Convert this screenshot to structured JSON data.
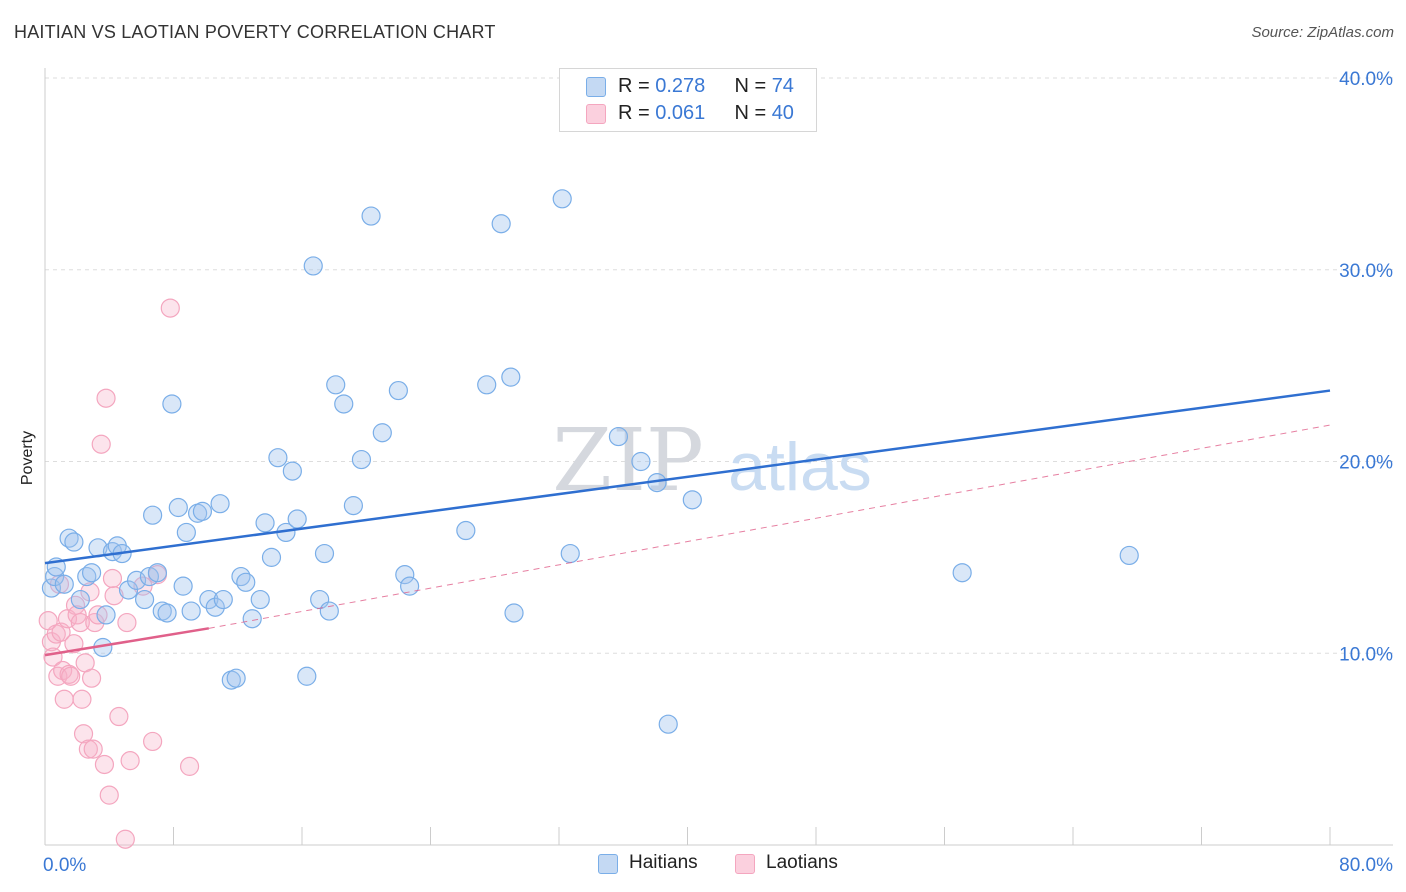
{
  "title": "HAITIAN VS LAOTIAN POVERTY CORRELATION CHART",
  "source": "Source: ZipAtlas.com",
  "watermark": {
    "zip": "ZIP",
    "atlas": "atlas"
  },
  "stats": [
    {
      "r_label": "R = ",
      "r_value": "0.278",
      "n_label": "N = ",
      "n_value": "74"
    },
    {
      "r_label": "R = ",
      "r_value": "0.061",
      "n_label": "N = ",
      "n_value": "40"
    }
  ],
  "chart_data": {
    "type": "scatter",
    "title": "HAITIAN VS LAOTIAN POVERTY CORRELATION CHART",
    "xlabel": "",
    "ylabel": "Poverty",
    "xlim": [
      0,
      80
    ],
    "ylim": [
      0,
      40
    ],
    "x_tick_labels": [
      {
        "value": 0,
        "label": "0.0%"
      },
      {
        "value": 80,
        "label": "80.0%"
      }
    ],
    "y_tick_labels": [
      {
        "value": 10,
        "label": "10.0%"
      },
      {
        "value": 20,
        "label": "20.0%"
      },
      {
        "value": 30,
        "label": "30.0%"
      },
      {
        "value": 40,
        "label": "40.0%"
      }
    ],
    "x_minor_ticks": [
      0,
      8,
      16,
      24,
      32,
      40,
      48,
      56,
      64,
      72,
      80
    ],
    "grid": true,
    "legend": "bottom-center",
    "series": [
      {
        "name": "Haitians",
        "color": "#7aaee8",
        "line_color": "#2f6fd0",
        "trend": {
          "x": [
            0,
            80
          ],
          "y": [
            14.7,
            23.7
          ],
          "extrapolated": false
        },
        "points": [
          [
            0.4,
            13.4
          ],
          [
            0.6,
            14.0
          ],
          [
            0.7,
            14.5
          ],
          [
            1.2,
            13.6
          ],
          [
            1.5,
            16.0
          ],
          [
            1.8,
            15.8
          ],
          [
            2.2,
            12.8
          ],
          [
            2.6,
            14.0
          ],
          [
            2.9,
            14.2
          ],
          [
            3.3,
            15.5
          ],
          [
            3.6,
            10.3
          ],
          [
            3.8,
            12.0
          ],
          [
            4.2,
            15.3
          ],
          [
            4.5,
            15.6
          ],
          [
            4.8,
            15.2
          ],
          [
            5.2,
            13.3
          ],
          [
            5.7,
            13.8
          ],
          [
            6.2,
            12.8
          ],
          [
            6.5,
            14.0
          ],
          [
            6.7,
            17.2
          ],
          [
            7.0,
            14.2
          ],
          [
            7.3,
            12.2
          ],
          [
            7.6,
            12.1
          ],
          [
            7.9,
            23.0
          ],
          [
            8.3,
            17.6
          ],
          [
            8.6,
            13.5
          ],
          [
            8.8,
            16.3
          ],
          [
            9.1,
            12.2
          ],
          [
            9.5,
            17.3
          ],
          [
            9.8,
            17.4
          ],
          [
            10.2,
            12.8
          ],
          [
            10.6,
            12.4
          ],
          [
            10.9,
            17.8
          ],
          [
            11.1,
            12.8
          ],
          [
            11.6,
            8.6
          ],
          [
            11.9,
            8.7
          ],
          [
            12.2,
            14.0
          ],
          [
            12.5,
            13.7
          ],
          [
            12.9,
            11.8
          ],
          [
            13.4,
            12.8
          ],
          [
            13.7,
            16.8
          ],
          [
            14.1,
            15.0
          ],
          [
            14.5,
            20.2
          ],
          [
            15.0,
            16.3
          ],
          [
            15.4,
            19.5
          ],
          [
            15.7,
            17.0
          ],
          [
            16.3,
            8.8
          ],
          [
            16.7,
            30.2
          ],
          [
            17.1,
            12.8
          ],
          [
            17.4,
            15.2
          ],
          [
            17.7,
            12.2
          ],
          [
            18.1,
            24.0
          ],
          [
            18.6,
            23.0
          ],
          [
            19.2,
            17.7
          ],
          [
            19.7,
            20.1
          ],
          [
            20.3,
            32.8
          ],
          [
            21.0,
            21.5
          ],
          [
            22.0,
            23.7
          ],
          [
            22.4,
            14.1
          ],
          [
            22.7,
            13.5
          ],
          [
            26.2,
            16.4
          ],
          [
            27.5,
            24.0
          ],
          [
            28.4,
            32.4
          ],
          [
            29.0,
            24.4
          ],
          [
            29.2,
            12.1
          ],
          [
            32.2,
            33.7
          ],
          [
            32.7,
            15.2
          ],
          [
            35.7,
            21.3
          ],
          [
            37.1,
            20.0
          ],
          [
            38.1,
            18.9
          ],
          [
            38.8,
            6.3
          ],
          [
            40.3,
            18.0
          ],
          [
            57.1,
            14.2
          ],
          [
            67.5,
            15.1
          ]
        ]
      },
      {
        "name": "Laotians",
        "color": "#f4a6bf",
        "line_color": "#e0608a",
        "trend": {
          "x": [
            0,
            10.2
          ],
          "y": [
            9.9,
            11.3
          ],
          "extrapolated_to": [
            80,
            21.9
          ]
        },
        "points": [
          [
            0.2,
            11.7
          ],
          [
            0.4,
            10.6
          ],
          [
            0.5,
            9.8
          ],
          [
            0.7,
            11.0
          ],
          [
            0.8,
            8.8
          ],
          [
            0.9,
            13.6
          ],
          [
            1.0,
            11.1
          ],
          [
            1.1,
            9.1
          ],
          [
            1.2,
            7.6
          ],
          [
            1.4,
            11.8
          ],
          [
            1.5,
            8.9
          ],
          [
            1.6,
            8.8
          ],
          [
            1.8,
            10.5
          ],
          [
            1.9,
            12.5
          ],
          [
            2.0,
            12.0
          ],
          [
            2.2,
            11.6
          ],
          [
            2.3,
            7.6
          ],
          [
            2.4,
            5.8
          ],
          [
            2.5,
            9.5
          ],
          [
            2.7,
            5.0
          ],
          [
            2.8,
            13.2
          ],
          [
            2.9,
            8.7
          ],
          [
            3.0,
            5.0
          ],
          [
            3.1,
            11.6
          ],
          [
            3.3,
            12.0
          ],
          [
            3.5,
            20.9
          ],
          [
            3.7,
            4.2
          ],
          [
            3.8,
            23.3
          ],
          [
            4.0,
            2.6
          ],
          [
            4.2,
            13.9
          ],
          [
            4.3,
            13.0
          ],
          [
            4.6,
            6.7
          ],
          [
            5.0,
            0.3
          ],
          [
            5.1,
            11.6
          ],
          [
            5.3,
            4.4
          ],
          [
            6.1,
            13.5
          ],
          [
            6.7,
            5.4
          ],
          [
            7.0,
            14.1
          ],
          [
            7.8,
            28.0
          ],
          [
            9.0,
            4.1
          ]
        ]
      }
    ]
  }
}
